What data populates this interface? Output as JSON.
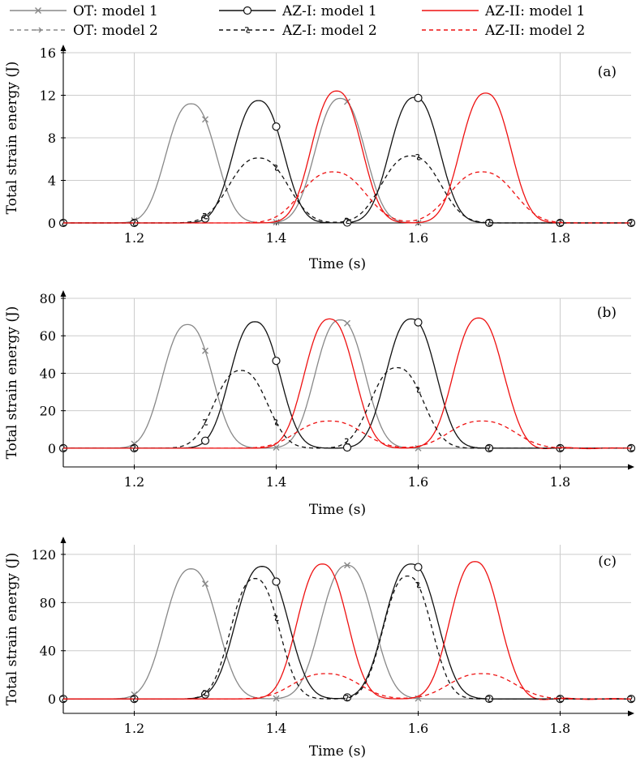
{
  "colors": {
    "OT": "#888888",
    "AZ-I": "#111111",
    "AZ-II": "#ee1111",
    "grid": "#cccccc",
    "axis": "#000000"
  },
  "legend": [
    {
      "label": "OT: model 1",
      "series": "OT",
      "model": 1
    },
    {
      "label": "AZ-I: model 1",
      "series": "AZ-I",
      "model": 1
    },
    {
      "label": "AZ-II: model 1",
      "series": "AZ-II",
      "model": 1
    },
    {
      "label": "OT: model 2",
      "series": "OT",
      "model": 2
    },
    {
      "label": "AZ-I: model 2",
      "series": "AZ-I",
      "model": 2
    },
    {
      "label": "AZ-II: model 2",
      "series": "AZ-II",
      "model": 2
    }
  ],
  "chart_data": [
    {
      "type": "line",
      "panel": "(a)",
      "xlabel": "Time (s)",
      "ylabel": "Total strain energy (J)",
      "xlim": [
        1.1,
        1.9
      ],
      "ylim": [
        0,
        16
      ],
      "xticks": [
        "1.2",
        "1.4",
        "1.6",
        "1.8"
      ],
      "yticks": [
        "0",
        "4",
        "8",
        "12",
        "16"
      ],
      "series": [
        {
          "name": "OT: model 1",
          "group": "OT",
          "dashed": false,
          "peaks": [
            [
              1.28,
              11.2,
              0.034
            ],
            [
              1.49,
              11.7,
              0.034
            ]
          ]
        },
        {
          "name": "AZ-I: model 1",
          "group": "AZ-I",
          "dashed": false,
          "peaks": [
            [
              1.375,
              11.5,
              0.034
            ],
            [
              1.595,
              11.8,
              0.034
            ]
          ]
        },
        {
          "name": "AZ-II: model 1",
          "group": "AZ-II",
          "dashed": false,
          "peaks": [
            [
              1.485,
              12.4,
              0.034
            ],
            [
              1.695,
              12.2,
              0.034
            ]
          ]
        },
        {
          "name": "OT: model 2",
          "group": "OT",
          "dashed": true,
          "peaks": [
            [
              1.28,
              11.2,
              0.034
            ],
            [
              1.49,
              11.7,
              0.034
            ]
          ]
        },
        {
          "name": "AZ-I: model 2",
          "group": "AZ-I",
          "dashed": true,
          "peaks": [
            [
              1.375,
              6.1,
              0.04
            ],
            [
              1.59,
              6.3,
              0.04
            ]
          ]
        },
        {
          "name": "AZ-II: model 2",
          "group": "AZ-II",
          "dashed": true,
          "peaks": [
            [
              1.48,
              4.8,
              0.044
            ],
            [
              1.69,
              4.8,
              0.044
            ]
          ]
        }
      ]
    },
    {
      "type": "line",
      "panel": "(b)",
      "xlabel": "Time (s)",
      "ylabel": "Total strain energy (J)",
      "xlim": [
        1.1,
        1.9
      ],
      "ylim": [
        -10,
        80
      ],
      "xticks": [
        "1.2",
        "1.4",
        "1.6",
        "1.8"
      ],
      "yticks": [
        "0",
        "20",
        "40",
        "60",
        "80"
      ],
      "series": [
        {
          "name": "OT: model 1",
          "group": "OT",
          "dashed": false,
          "peaks": [
            [
              1.275,
              66,
              0.034
            ],
            [
              1.49,
              68.5,
              0.034
            ]
          ]
        },
        {
          "name": "AZ-I: model 1",
          "group": "AZ-I",
          "dashed": false,
          "peaks": [
            [
              1.37,
              67.5,
              0.034
            ],
            [
              1.59,
              69,
              0.034
            ]
          ]
        },
        {
          "name": "AZ-II: model 1",
          "group": "AZ-II",
          "dashed": false,
          "peaks": [
            [
              1.475,
              69,
              0.034
            ],
            [
              1.685,
              69.5,
              0.034
            ]
          ]
        },
        {
          "name": "OT: model 2",
          "group": "OT",
          "dashed": true,
          "peaks": [
            [
              1.275,
              66,
              0.034
            ],
            [
              1.49,
              68.5,
              0.034
            ]
          ]
        },
        {
          "name": "AZ-I: model 2",
          "group": "AZ-I",
          "dashed": true,
          "peaks": [
            [
              1.35,
              41.5,
              0.036
            ],
            [
              1.57,
              43,
              0.036
            ]
          ]
        },
        {
          "name": "AZ-II: model 2",
          "group": "AZ-II",
          "dashed": true,
          "peaks": [
            [
              1.475,
              14.5,
              0.045
            ],
            [
              1.69,
              14.5,
              0.045
            ]
          ]
        }
      ]
    },
    {
      "type": "line",
      "panel": "(c)",
      "xlabel": "Time (s)",
      "ylabel": "Total strain energy (J)",
      "xlim": [
        1.1,
        1.9
      ],
      "ylim": [
        -12,
        128
      ],
      "xticks": [
        "1.2",
        "1.4",
        "1.6",
        "1.8"
      ],
      "yticks": [
        "0",
        "40",
        "80",
        "120"
      ],
      "series": [
        {
          "name": "OT: model 1",
          "group": "OT",
          "dashed": false,
          "peaks": [
            [
              1.28,
              108,
              0.036
            ],
            [
              1.5,
              111,
              0.036
            ]
          ]
        },
        {
          "name": "AZ-I: model 1",
          "group": "AZ-I",
          "dashed": false,
          "peaks": [
            [
              1.38,
              110,
              0.036
            ],
            [
              1.59,
              112,
              0.036
            ]
          ]
        },
        {
          "name": "AZ-II: model 1",
          "group": "AZ-II",
          "dashed": false,
          "peaks": [
            [
              1.465,
              112,
              0.034
            ],
            [
              1.68,
              114,
              0.034
            ]
          ]
        },
        {
          "name": "OT: model 2",
          "group": "OT",
          "dashed": true,
          "peaks": [
            [
              1.28,
              108,
              0.036
            ],
            [
              1.5,
              111,
              0.036
            ]
          ]
        },
        {
          "name": "AZ-I: model 2",
          "group": "AZ-I",
          "dashed": true,
          "peaks": [
            [
              1.37,
              100,
              0.033
            ],
            [
              1.585,
              102,
              0.033
            ]
          ]
        },
        {
          "name": "AZ-II: model 2",
          "group": "AZ-II",
          "dashed": true,
          "peaks": [
            [
              1.47,
              21,
              0.045
            ],
            [
              1.69,
              21,
              0.045
            ]
          ]
        }
      ]
    }
  ]
}
